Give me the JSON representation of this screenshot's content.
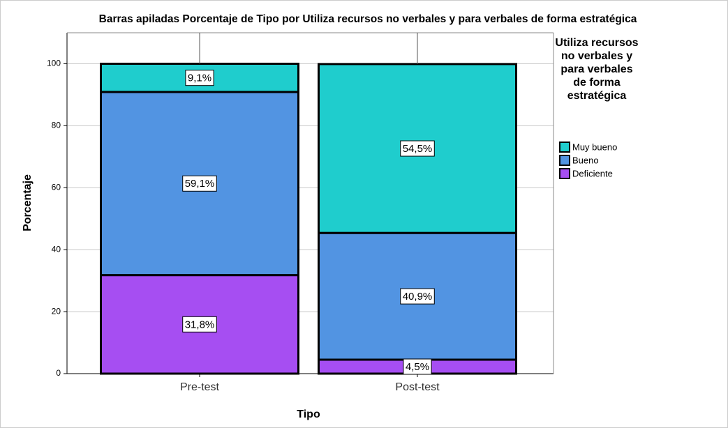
{
  "chart_data": {
    "type": "stacked_bar",
    "title": "Barras apiladas Porcentaje de Tipo por Utiliza recursos no verbales y para verbales de forma estratégica",
    "x_label": "Tipo",
    "y_label": "Porcentaje",
    "legend_title": "Utiliza recursos no verbales y para verbales de forma estratégica",
    "categories": [
      "Pre-test",
      "Post-test"
    ],
    "series": [
      {
        "name": "Deficiente",
        "color": "#a64ef2",
        "values": [
          31.8,
          4.5
        ],
        "value_labels": [
          "31,8%",
          "4,5%"
        ]
      },
      {
        "name": "Bueno",
        "color": "#5294e2",
        "values": [
          59.1,
          40.9
        ],
        "value_labels": [
          "59,1%",
          "40,9%"
        ]
      },
      {
        "name": "Muy bueno",
        "color": "#1fcdcd",
        "values": [
          9.1,
          54.5
        ],
        "value_labels": [
          "9,1%",
          "54,5%"
        ]
      }
    ],
    "ylim": [
      0,
      110
    ],
    "yticks": [
      0,
      20,
      40,
      60,
      80,
      100
    ],
    "grid": true
  }
}
